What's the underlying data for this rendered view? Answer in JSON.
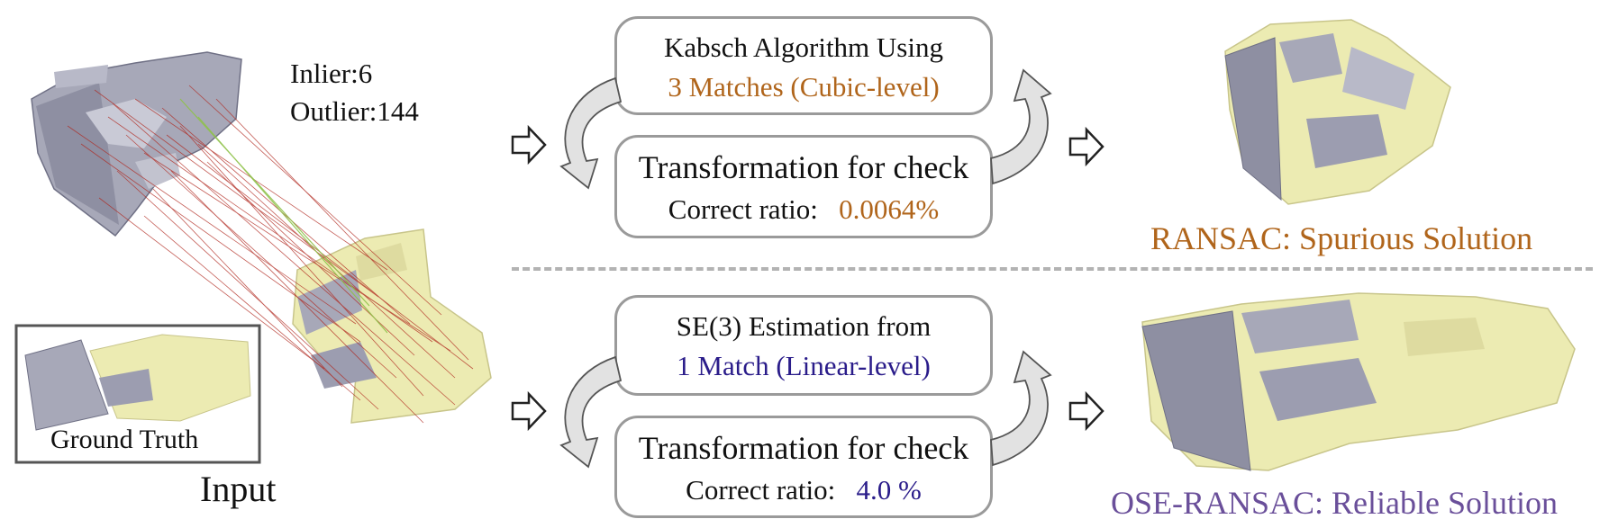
{
  "colors": {
    "ransac_accent": "#b0651b",
    "ose_accent": "#2a1c8a",
    "ose_title": "#6a4f9a",
    "box_border": "#9a9a9a",
    "mesh_gray": "#a7a8b8",
    "mesh_yellow": "#ecebb2",
    "match_red": "#b0261d",
    "match_green": "#8fc24a"
  },
  "input": {
    "inlier_label": "Inlier:6",
    "outlier_label": "Outlier:144",
    "ground_truth_label": "Ground Truth",
    "caption": "Input"
  },
  "ransac": {
    "sample_box": {
      "line1": "Kabsch Algorithm Using",
      "line2": "3 Matches (Cubic-level)"
    },
    "check_box": {
      "line1": "Transformation for check",
      "ratio_label": "Correct ratio:",
      "ratio_value": "0.0064%"
    },
    "result_title": "RANSAC: Spurious Solution"
  },
  "ose": {
    "sample_box": {
      "line1": "SE(3) Estimation from",
      "line2": "1 Match (Linear-level)"
    },
    "check_box": {
      "line1": "Transformation for check",
      "ratio_label": "Correct ratio:",
      "ratio_value": "4.0 %"
    },
    "result_title": "OSE-RANSAC: Reliable Solution"
  },
  "icons": {
    "flow_arrow": "right-arrow-outline-icon",
    "loop_arrow": "curved-loop-arrow-icon"
  }
}
